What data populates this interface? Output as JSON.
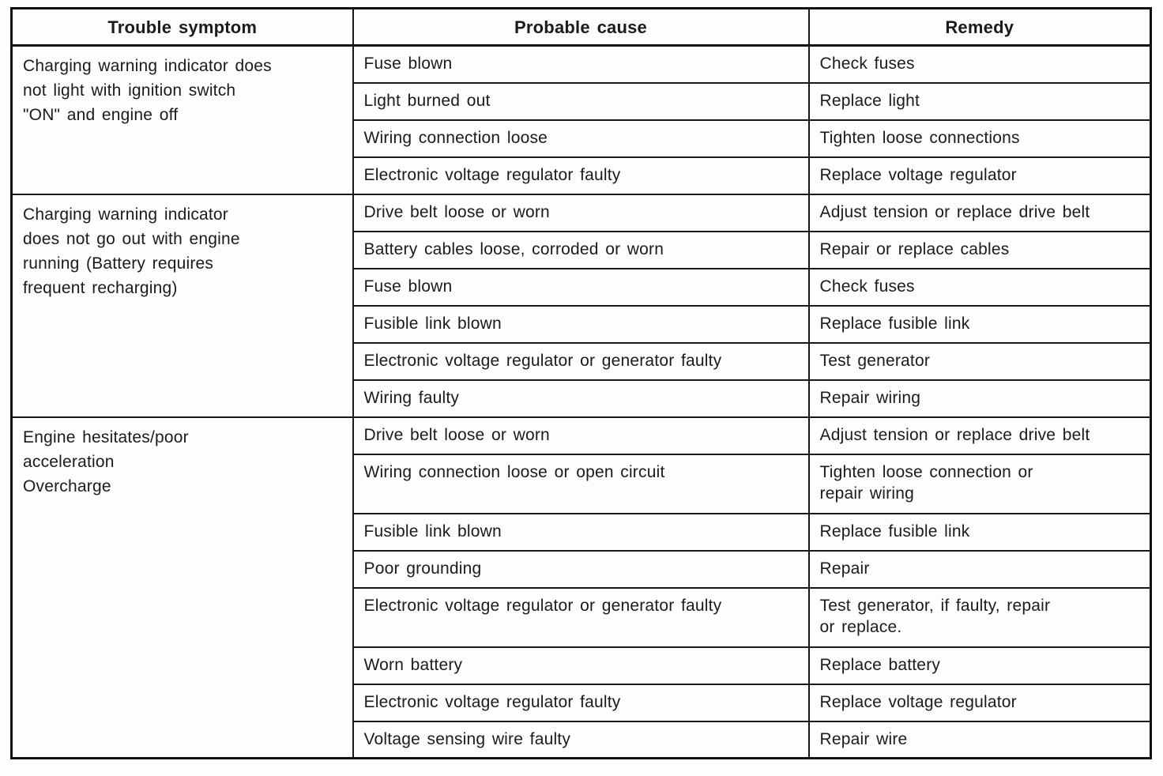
{
  "table": {
    "headers": [
      "Trouble symptom",
      "Probable cause",
      "Remedy"
    ],
    "groups": [
      {
        "symptom": "Charging warning indicator does\nnot light with ignition switch\n\"ON\" and engine off",
        "rows": [
          {
            "cause": "Fuse blown",
            "remedy": "Check fuses"
          },
          {
            "cause": "Light burned out",
            "remedy": "Replace light"
          },
          {
            "cause": "Wiring connection loose",
            "remedy": "Tighten loose connections"
          },
          {
            "cause": "Electronic voltage regulator faulty",
            "remedy": "Replace voltage regulator"
          }
        ]
      },
      {
        "symptom": "Charging warning indicator\ndoes not go out with engine\nrunning (Battery requires\nfrequent recharging)",
        "rows": [
          {
            "cause": "Drive belt loose or worn",
            "remedy": "Adjust tension or replace drive belt"
          },
          {
            "cause": "Battery cables loose, corroded or worn",
            "remedy": "Repair or replace cables"
          },
          {
            "cause": "Fuse blown",
            "remedy": "Check fuses"
          },
          {
            "cause": "Fusible link blown",
            "remedy": "Replace fusible link"
          },
          {
            "cause": "Electronic voltage regulator or generator faulty",
            "remedy": "Test generator"
          },
          {
            "cause": "Wiring faulty",
            "remedy": "Repair wiring"
          }
        ]
      },
      {
        "symptom": "Engine hesitates/poor\nacceleration\nOvercharge",
        "rows": [
          {
            "cause": "Drive belt loose or worn",
            "remedy": "Adjust tension or replace drive belt"
          },
          {
            "cause": "Wiring connection loose or open circuit",
            "remedy": "Tighten loose connection or\nrepair wiring"
          },
          {
            "cause": "Fusible link blown",
            "remedy": "Replace fusible link"
          },
          {
            "cause": "Poor grounding",
            "remedy": "Repair"
          },
          {
            "cause": "Electronic voltage regulator or generator faulty",
            "remedy": "Test generator, if faulty, repair\nor replace."
          },
          {
            "cause": "Worn battery",
            "remedy": "Replace battery"
          },
          {
            "cause": "Electronic voltage regulator faulty",
            "remedy": "Replace voltage regulator"
          },
          {
            "cause": "Voltage sensing wire faulty",
            "remedy": "Repair wire"
          }
        ]
      }
    ]
  }
}
